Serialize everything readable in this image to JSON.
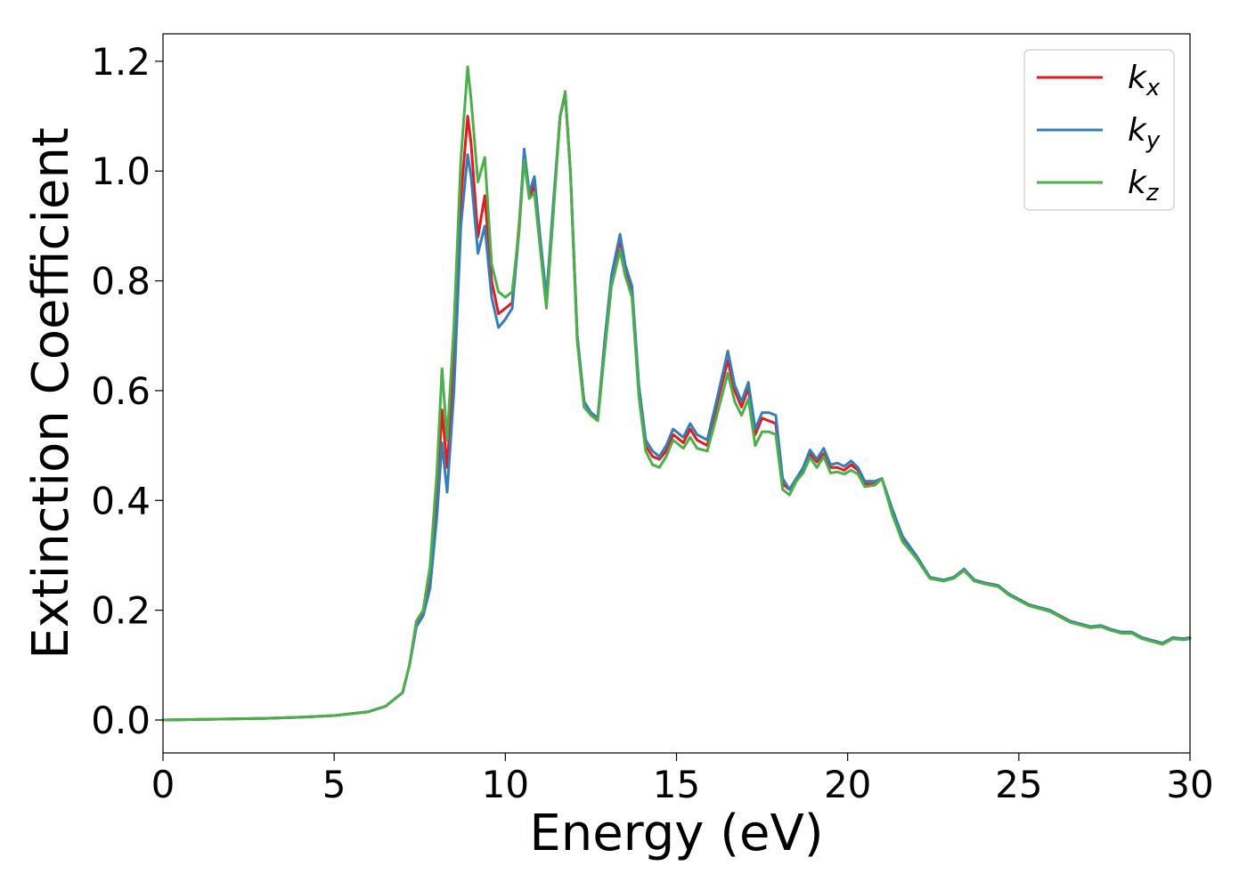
{
  "chart_data": {
    "type": "line",
    "xlabel": "Energy (eV)",
    "ylabel": "Extinction Coefficient",
    "xlim": [
      0,
      30
    ],
    "ylim": [
      -0.06,
      1.25
    ],
    "xticks": [
      0,
      5,
      10,
      15,
      20,
      25,
      30
    ],
    "yticks": [
      0.0,
      0.2,
      0.4,
      0.6,
      0.8,
      1.0,
      1.2
    ],
    "xtick_labels": [
      "0",
      "5",
      "10",
      "15",
      "20",
      "25",
      "30"
    ],
    "ytick_labels": [
      "0.0",
      "0.2",
      "0.4",
      "0.6",
      "0.8",
      "1.0",
      "1.2"
    ],
    "grid": false,
    "legend_position": "top-right",
    "series": [
      {
        "name": "kx",
        "label_main": "k",
        "label_sub": "x",
        "color": "#e41a1c",
        "x": [
          0,
          1,
          2,
          3,
          4,
          5,
          6,
          6.5,
          7,
          7.2,
          7.4,
          7.6,
          7.8,
          8.0,
          8.15,
          8.3,
          8.5,
          8.7,
          8.9,
          9.0,
          9.2,
          9.4,
          9.6,
          9.8,
          10.0,
          10.2,
          10.4,
          10.55,
          10.7,
          10.85,
          11.0,
          11.2,
          11.4,
          11.6,
          11.75,
          11.9,
          12.1,
          12.3,
          12.5,
          12.7,
          12.9,
          13.1,
          13.35,
          13.5,
          13.7,
          13.9,
          14.1,
          14.3,
          14.5,
          14.7,
          14.9,
          15.0,
          15.2,
          15.4,
          15.6,
          15.9,
          16.2,
          16.5,
          16.7,
          16.9,
          17.1,
          17.3,
          17.5,
          17.7,
          17.9,
          18.1,
          18.3,
          18.5,
          18.7,
          18.9,
          19.1,
          19.3,
          19.5,
          19.7,
          19.9,
          20.1,
          20.3,
          20.5,
          20.8,
          21.0,
          21.3,
          21.6,
          22.0,
          22.4,
          22.8,
          23.1,
          23.4,
          23.7,
          24.0,
          24.4,
          24.7,
          25.0,
          25.3,
          25.6,
          25.9,
          26.2,
          26.5,
          26.8,
          27.1,
          27.4,
          27.7,
          28.0,
          28.3,
          28.6,
          28.9,
          29.2,
          29.5,
          29.8,
          30.0
        ],
        "y": [
          0.0,
          0.001,
          0.002,
          0.003,
          0.005,
          0.008,
          0.015,
          0.025,
          0.05,
          0.1,
          0.17,
          0.195,
          0.25,
          0.4,
          0.565,
          0.46,
          0.65,
          0.95,
          1.1,
          1.05,
          0.88,
          0.955,
          0.8,
          0.74,
          0.75,
          0.76,
          0.9,
          1.03,
          0.95,
          0.975,
          0.88,
          0.76,
          0.93,
          1.1,
          1.14,
          1.0,
          0.7,
          0.58,
          0.56,
          0.55,
          0.68,
          0.8,
          0.875,
          0.82,
          0.78,
          0.6,
          0.5,
          0.48,
          0.475,
          0.49,
          0.52,
          0.515,
          0.505,
          0.53,
          0.51,
          0.5,
          0.58,
          0.655,
          0.6,
          0.57,
          0.605,
          0.52,
          0.55,
          0.545,
          0.54,
          0.43,
          0.42,
          0.44,
          0.455,
          0.485,
          0.47,
          0.485,
          0.46,
          0.46,
          0.455,
          0.465,
          0.455,
          0.43,
          0.43,
          0.44,
          0.38,
          0.33,
          0.3,
          0.26,
          0.255,
          0.26,
          0.275,
          0.255,
          0.25,
          0.245,
          0.23,
          0.22,
          0.21,
          0.205,
          0.2,
          0.19,
          0.18,
          0.175,
          0.17,
          0.172,
          0.165,
          0.16,
          0.16,
          0.15,
          0.145,
          0.14,
          0.15,
          0.148,
          0.15
        ]
      },
      {
        "name": "ky",
        "label_main": "k",
        "label_sub": "y",
        "color": "#377eb8",
        "x": [
          0,
          1,
          2,
          3,
          4,
          5,
          6,
          6.5,
          7,
          7.2,
          7.4,
          7.6,
          7.8,
          8.0,
          8.15,
          8.3,
          8.5,
          8.7,
          8.9,
          9.0,
          9.2,
          9.4,
          9.6,
          9.8,
          10.0,
          10.2,
          10.4,
          10.55,
          10.7,
          10.85,
          11.0,
          11.2,
          11.4,
          11.6,
          11.75,
          11.9,
          12.1,
          12.3,
          12.5,
          12.7,
          12.9,
          13.1,
          13.35,
          13.5,
          13.7,
          13.9,
          14.1,
          14.3,
          14.5,
          14.7,
          14.9,
          15.0,
          15.2,
          15.4,
          15.6,
          15.9,
          16.2,
          16.5,
          16.7,
          16.9,
          17.1,
          17.3,
          17.5,
          17.7,
          17.9,
          18.1,
          18.3,
          18.5,
          18.7,
          18.9,
          19.1,
          19.3,
          19.5,
          19.7,
          19.9,
          20.1,
          20.3,
          20.5,
          20.8,
          21.0,
          21.3,
          21.6,
          22.0,
          22.4,
          22.8,
          23.1,
          23.4,
          23.7,
          24.0,
          24.4,
          24.7,
          25.0,
          25.3,
          25.6,
          25.9,
          26.2,
          26.5,
          26.8,
          27.1,
          27.4,
          27.7,
          28.0,
          28.3,
          28.6,
          28.9,
          29.2,
          29.5,
          29.8,
          30.0
        ],
        "y": [
          0.0,
          0.001,
          0.002,
          0.003,
          0.005,
          0.008,
          0.015,
          0.025,
          0.05,
          0.1,
          0.17,
          0.19,
          0.24,
          0.37,
          0.505,
          0.415,
          0.6,
          0.9,
          1.03,
          0.99,
          0.85,
          0.9,
          0.77,
          0.715,
          0.73,
          0.75,
          0.89,
          1.04,
          0.96,
          0.99,
          0.89,
          0.77,
          0.94,
          1.1,
          1.14,
          1.0,
          0.7,
          0.58,
          0.56,
          0.55,
          0.69,
          0.81,
          0.885,
          0.83,
          0.79,
          0.61,
          0.51,
          0.49,
          0.48,
          0.5,
          0.53,
          0.525,
          0.515,
          0.54,
          0.52,
          0.51,
          0.59,
          0.672,
          0.61,
          0.58,
          0.615,
          0.53,
          0.56,
          0.56,
          0.555,
          0.44,
          0.42,
          0.44,
          0.46,
          0.492,
          0.475,
          0.495,
          0.465,
          0.468,
          0.462,
          0.472,
          0.46,
          0.435,
          0.435,
          0.44,
          0.385,
          0.335,
          0.3,
          0.26,
          0.255,
          0.26,
          0.275,
          0.255,
          0.25,
          0.245,
          0.23,
          0.22,
          0.21,
          0.205,
          0.2,
          0.19,
          0.18,
          0.175,
          0.17,
          0.172,
          0.165,
          0.16,
          0.16,
          0.15,
          0.145,
          0.14,
          0.15,
          0.148,
          0.15
        ]
      },
      {
        "name": "kz",
        "label_main": "k",
        "label_sub": "z",
        "color": "#4daf4a",
        "x": [
          0,
          1,
          2,
          3,
          4,
          5,
          6,
          6.5,
          7,
          7.2,
          7.4,
          7.6,
          7.8,
          8.0,
          8.15,
          8.3,
          8.5,
          8.7,
          8.9,
          9.0,
          9.2,
          9.4,
          9.6,
          9.8,
          10.0,
          10.2,
          10.4,
          10.55,
          10.7,
          10.85,
          11.0,
          11.2,
          11.4,
          11.6,
          11.75,
          11.9,
          12.1,
          12.3,
          12.5,
          12.7,
          12.9,
          13.1,
          13.35,
          13.5,
          13.7,
          13.9,
          14.1,
          14.3,
          14.5,
          14.7,
          14.9,
          15.0,
          15.2,
          15.4,
          15.6,
          15.9,
          16.2,
          16.5,
          16.7,
          16.9,
          17.1,
          17.3,
          17.5,
          17.7,
          17.9,
          18.1,
          18.3,
          18.5,
          18.7,
          18.9,
          19.1,
          19.3,
          19.5,
          19.7,
          19.9,
          20.1,
          20.3,
          20.5,
          20.8,
          21.0,
          21.3,
          21.6,
          22.0,
          22.4,
          22.8,
          23.1,
          23.4,
          23.7,
          24.0,
          24.4,
          24.7,
          25.0,
          25.3,
          25.6,
          25.9,
          26.2,
          26.5,
          26.8,
          27.1,
          27.4,
          27.7,
          28.0,
          28.3,
          28.6,
          28.9,
          29.2,
          29.5,
          29.8,
          30.0
        ],
        "y": [
          0.0,
          0.001,
          0.002,
          0.003,
          0.005,
          0.008,
          0.015,
          0.025,
          0.05,
          0.1,
          0.18,
          0.2,
          0.28,
          0.45,
          0.64,
          0.51,
          0.72,
          1.02,
          1.19,
          1.13,
          0.98,
          1.025,
          0.83,
          0.78,
          0.77,
          0.78,
          0.89,
          1.02,
          0.95,
          0.96,
          0.87,
          0.75,
          0.92,
          1.1,
          1.145,
          1.0,
          0.69,
          0.57,
          0.555,
          0.545,
          0.67,
          0.79,
          0.855,
          0.81,
          0.77,
          0.59,
          0.49,
          0.465,
          0.46,
          0.48,
          0.51,
          0.505,
          0.495,
          0.515,
          0.495,
          0.49,
          0.56,
          0.632,
          0.58,
          0.555,
          0.585,
          0.5,
          0.525,
          0.525,
          0.52,
          0.42,
          0.41,
          0.435,
          0.45,
          0.478,
          0.46,
          0.48,
          0.45,
          0.452,
          0.448,
          0.455,
          0.448,
          0.425,
          0.428,
          0.44,
          0.375,
          0.325,
          0.295,
          0.258,
          0.253,
          0.258,
          0.272,
          0.253,
          0.248,
          0.243,
          0.228,
          0.218,
          0.208,
          0.203,
          0.198,
          0.188,
          0.178,
          0.173,
          0.168,
          0.17,
          0.163,
          0.158,
          0.158,
          0.148,
          0.143,
          0.138,
          0.148,
          0.146,
          0.148
        ]
      }
    ]
  }
}
